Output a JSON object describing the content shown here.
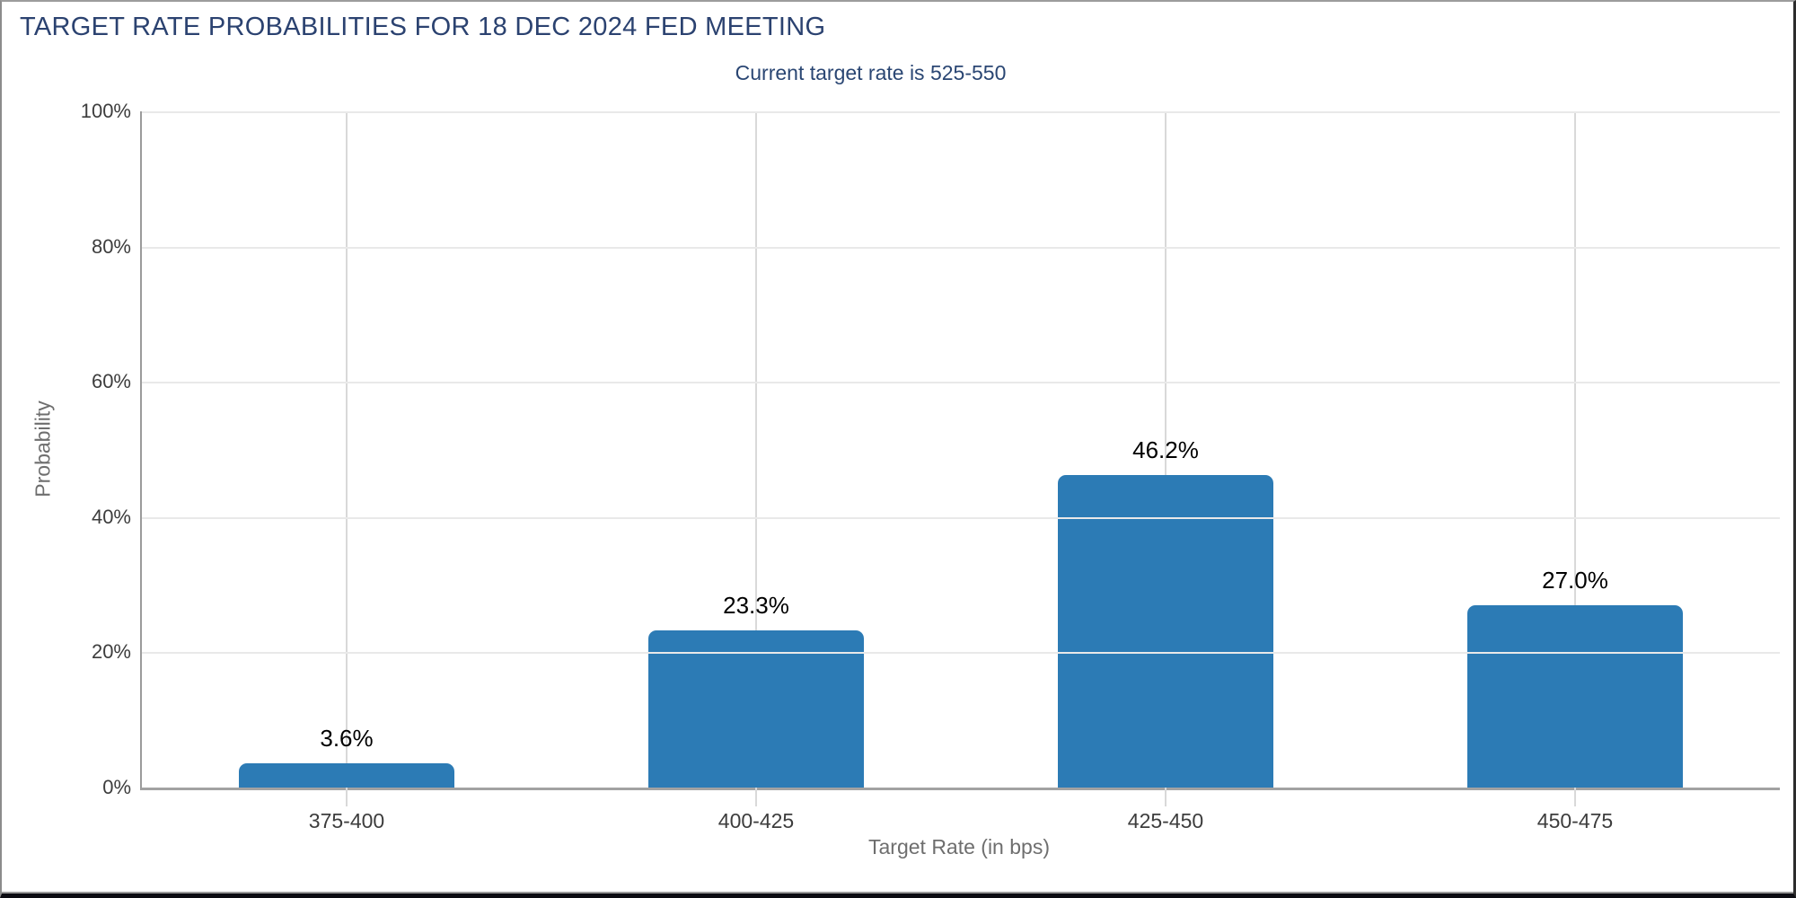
{
  "chart_data": {
    "type": "bar",
    "title": "TARGET RATE PROBABILITIES FOR 18 DEC 2024 FED MEETING",
    "subtitle": "Current target rate is 525-550",
    "categories": [
      "375-400",
      "400-425",
      "425-450",
      "450-475"
    ],
    "values": [
      3.6,
      23.3,
      46.2,
      27.0
    ],
    "bar_labels": [
      "3.6%",
      "23.3%",
      "46.2%",
      "27.0%"
    ],
    "xlabel": "Target Rate (in bps)",
    "ylabel": "Probability",
    "ylim": [
      0,
      100
    ],
    "ytick_labels": [
      "100%",
      "80%",
      "60%",
      "40%",
      "20%",
      "0%"
    ],
    "grid": true,
    "legend_position": "none",
    "bar_color": "#2c7bb5"
  },
  "colors": {
    "title_navy": "#2b4270",
    "subtitle_navy": "#2a4673",
    "bar_blue": "#2c7bb5",
    "axis_gray": "#a2a2a2",
    "tick_text_gray": "#3d3d3d",
    "axis_title_gray": "#6e6e6e",
    "gridline_gray": "#e9e9e9"
  }
}
